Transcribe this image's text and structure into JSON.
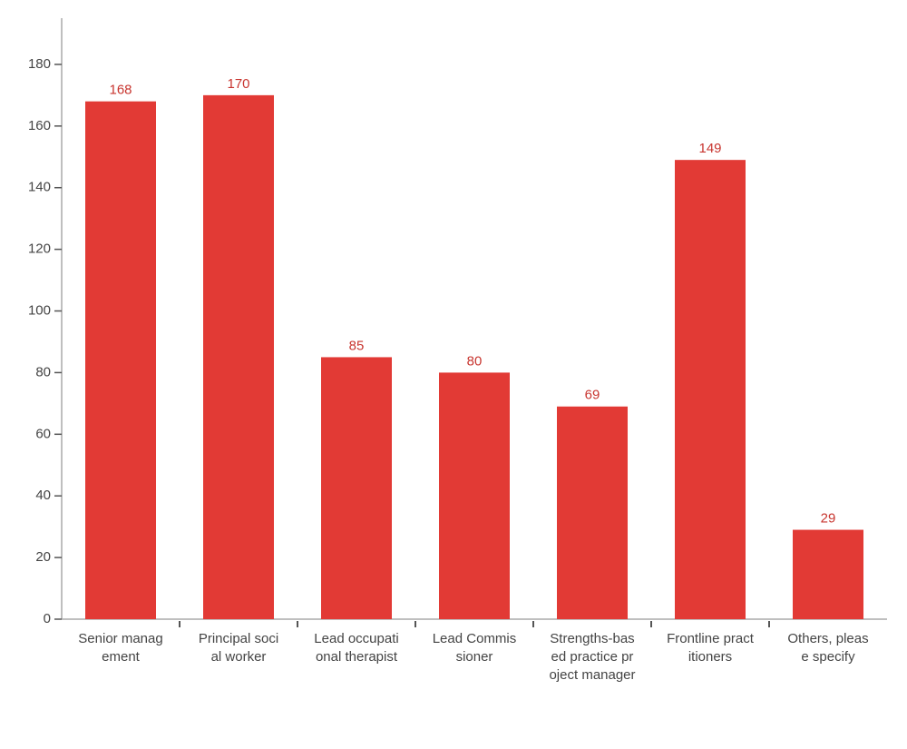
{
  "chart_data": {
    "type": "bar",
    "categories": [
      "Senior management",
      "Principal social worker",
      "Lead occupational therapist",
      "Lead Commissioner",
      "Strengths-based practice project manager",
      "Frontline practitioners",
      "Others, please specify"
    ],
    "values": [
      168,
      170,
      85,
      80,
      69,
      149,
      29
    ],
    "color": "#e23a35",
    "label_color": "#c8352f",
    "ylim": [
      0,
      195
    ],
    "yticks": [
      0,
      20,
      40,
      60,
      80,
      100,
      120,
      140,
      160,
      180
    ],
    "grid": false
  }
}
